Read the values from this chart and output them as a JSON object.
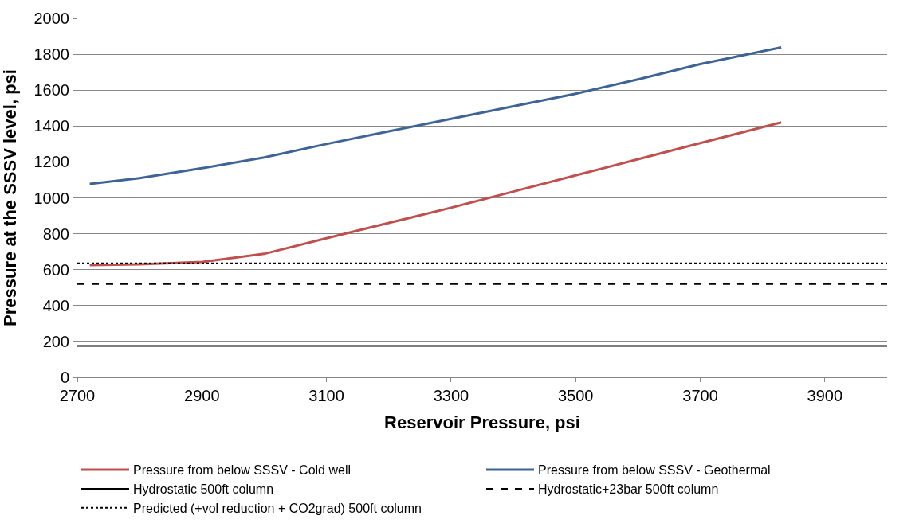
{
  "chart_data": {
    "type": "line",
    "xlabel": "Reservoir Pressure, psi",
    "ylabel": "Pressure at the SSSV level, psi",
    "xlim": [
      2700,
      4000
    ],
    "xticks": [
      2700,
      2900,
      3100,
      3300,
      3500,
      3700,
      3900
    ],
    "ylim": [
      0,
      2000
    ],
    "yticks": [
      0,
      200,
      400,
      600,
      800,
      1000,
      1200,
      1400,
      1600,
      1800,
      2000
    ],
    "grid": "y",
    "legend": "bottom",
    "marker": "none",
    "series": [
      {
        "name": "Pressure from below SSSV - Cold well",
        "color": "#c0504d",
        "line_style": "solid",
        "x": [
          2720,
          2800,
          2900,
          3000,
          3100,
          3200,
          3300,
          3400,
          3500,
          3600,
          3700,
          3830
        ],
        "values": [
          625,
          630,
          643,
          688,
          775,
          860,
          945,
          1035,
          1125,
          1215,
          1305,
          1420
        ]
      },
      {
        "name": "Pressure from below SSSV - Geothermal",
        "color": "#3d6494",
        "line_style": "solid",
        "x": [
          2720,
          2800,
          2900,
          3000,
          3100,
          3200,
          3300,
          3400,
          3500,
          3600,
          3700,
          3830
        ],
        "values": [
          1078,
          1110,
          1165,
          1225,
          1300,
          1370,
          1440,
          1510,
          1580,
          1660,
          1745,
          1838
        ]
      },
      {
        "name": "Hydrostatic 500ft column",
        "color": "#000000",
        "line_style": "solid",
        "x": [
          2700,
          4000
        ],
        "values": [
          175,
          175
        ]
      },
      {
        "name": "Hydrostatic+23bar 500ft column",
        "color": "#000000",
        "line_style": "dashed",
        "x": [
          2700,
          4000
        ],
        "values": [
          520,
          520
        ]
      },
      {
        "name": "Predicted (+vol reduction + CO2grad) 500ft column",
        "color": "#000000",
        "line_style": "dotted",
        "x": [
          2700,
          4000
        ],
        "values": [
          635,
          635
        ]
      }
    ]
  }
}
